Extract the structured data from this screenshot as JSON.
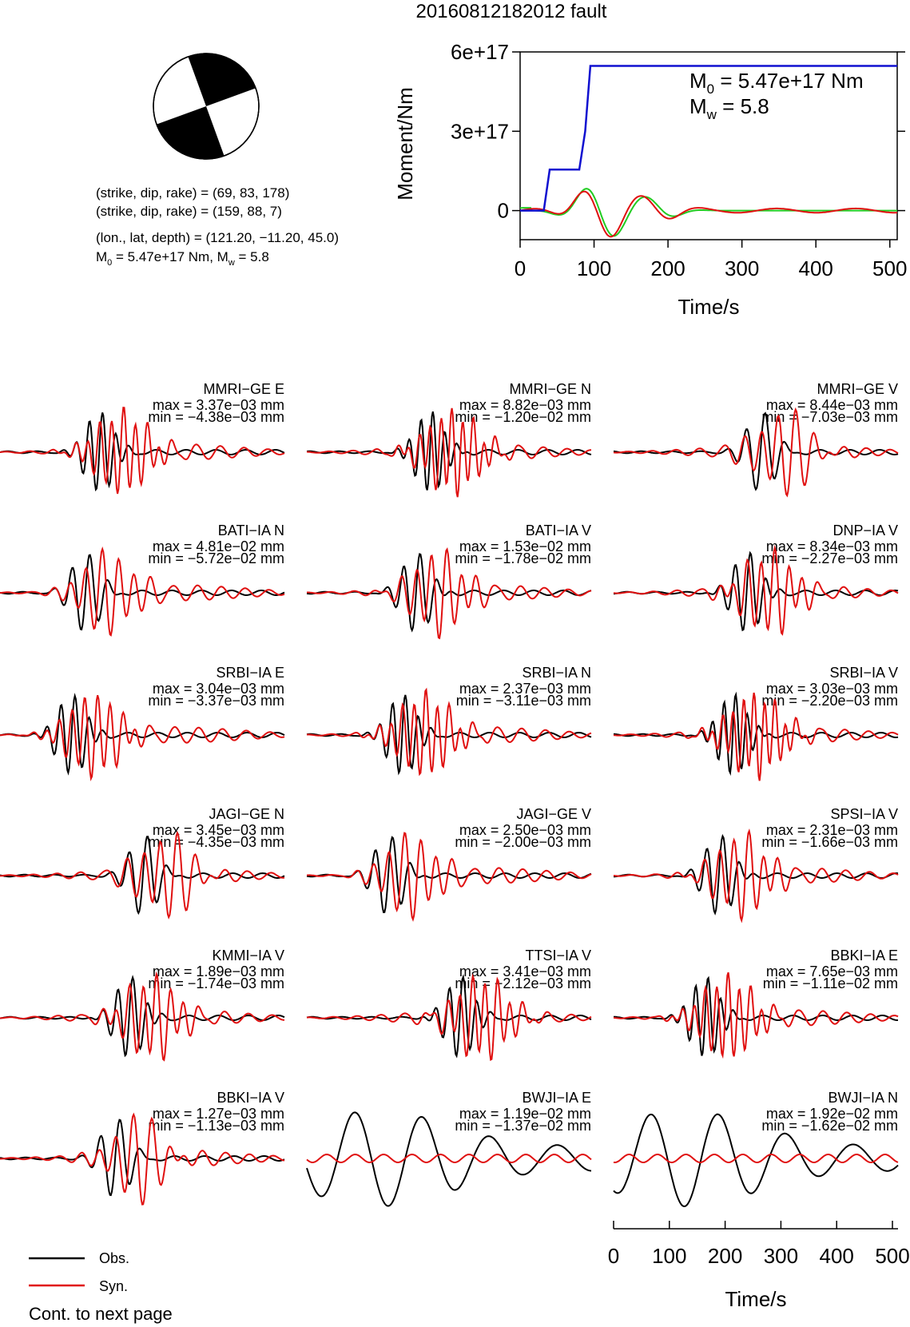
{
  "title": "20160812182012 fault",
  "colors": {
    "observed": "#000000",
    "synthetic": "#e01010",
    "moment_curve": "#1010d0",
    "moment_rate_green": "#22cc22",
    "moment_rate_red": "#e01010"
  },
  "mechanism": {
    "icon": "focal-mechanism-beachball",
    "line1": "(strike, dip, rake) = (69, 83, 178)",
    "line2": "(strike, dip, rake) = (159, 88, 7)",
    "line3": "(lon., lat, depth) = (121.20, −11.20, 45.0)",
    "line4_a": "M",
    "line4_sub": "0",
    "line4_b": " = 5.47e+17 Nm, M",
    "line4_sub2": "w",
    "line4_c": " = 5.8"
  },
  "moment_panel": {
    "ylabel": "Moment/Nm",
    "xlabel": "Time/s",
    "yticks": [
      "6e+17",
      "3e+17",
      "0"
    ],
    "xticks": [
      "0",
      "100",
      "200",
      "300",
      "400",
      "500"
    ],
    "m0_a": "M",
    "m0_sub": "0",
    "m0_b": " = 5.47e+17 Nm",
    "mw_a": "M",
    "mw_sub": "w",
    "mw_b": " = 5.8"
  },
  "chart_data": [
    {
      "type": "line",
      "name": "moment",
      "xlim": [
        0,
        510
      ],
      "ylim": [
        -1.1e+17,
        6e+17
      ],
      "series": [
        {
          "values_x": [
            0,
            32,
            40,
            80,
            88,
            95,
            510
          ],
          "values_y": [
            0,
            0,
            1.55e+17,
            1.55e+17,
            3e+17,
            5.47e+17,
            5.47e+17
          ]
        }
      ]
    },
    {
      "type": "line",
      "name": "waveforms",
      "xlim": [
        0,
        510
      ],
      "grid": false,
      "legend": "bottom-left"
    }
  ],
  "stations": [
    {
      "name": "MMRI−GE E",
      "max": "max = 3.37e−03 mm",
      "min": "min = −4.38e−03 mm"
    },
    {
      "name": "MMRI−GE N",
      "max": "max = 8.82e−03 mm",
      "min": "min = −1.20e−02 mm"
    },
    {
      "name": "MMRI−GE V",
      "max": "max = 8.44e−03 mm",
      "min": "min = −7.03e−03 mm"
    },
    {
      "name": "BATI−IA N",
      "max": "max = 4.81e−02 mm",
      "min": "min = −5.72e−02 mm"
    },
    {
      "name": "BATI−IA V",
      "max": "max = 1.53e−02 mm",
      "min": "min = −1.78e−02 mm"
    },
    {
      "name": "DNP−IA V",
      "max": "max = 8.34e−03 mm",
      "min": "min = −2.27e−03 mm"
    },
    {
      "name": "SRBI−IA E",
      "max": "max = 3.04e−03 mm",
      "min": "min = −3.37e−03 mm"
    },
    {
      "name": "SRBI−IA N",
      "max": "max = 2.37e−03 mm",
      "min": "min = −3.11e−03 mm"
    },
    {
      "name": "SRBI−IA V",
      "max": "max = 3.03e−03 mm",
      "min": "min = −2.20e−03 mm"
    },
    {
      "name": "JAGI−GE N",
      "max": "max = 3.45e−03 mm",
      "min": "min = −4.35e−03 mm"
    },
    {
      "name": "JAGI−GE V",
      "max": "max = 2.50e−03 mm",
      "min": "min = −2.00e−03 mm"
    },
    {
      "name": "SPSI−IA V",
      "max": "max = 2.31e−03 mm",
      "min": "min = −1.66e−03 mm"
    },
    {
      "name": "KMMI−IA V",
      "max": "max = 1.89e−03 mm",
      "min": "min = −1.74e−03 mm"
    },
    {
      "name": "TTSI−IA V",
      "max": "max = 3.41e−03 mm",
      "min": "min = −2.12e−03 mm"
    },
    {
      "name": "BBKI−IA E",
      "max": "max = 7.65e−03 mm",
      "min": "min = −1.11e−02 mm"
    },
    {
      "name": "BBKI−IA V",
      "max": "max = 1.27e−03 mm",
      "min": "min = −1.13e−03 mm"
    },
    {
      "name": "BWJI−IA E",
      "max": "max = 1.19e−02 mm",
      "min": "min = −1.37e−02 mm"
    },
    {
      "name": "BWJI−IA N",
      "max": "max = 1.92e−02 mm",
      "min": "min = −1.62e−02 mm"
    }
  ],
  "waveform_axis": {
    "xlabel": "Time/s",
    "xticks": [
      "0",
      "100",
      "200",
      "300",
      "400",
      "500"
    ]
  },
  "legend": {
    "obs": "Obs.",
    "syn": "Syn."
  },
  "footer": "Cont. to next page"
}
